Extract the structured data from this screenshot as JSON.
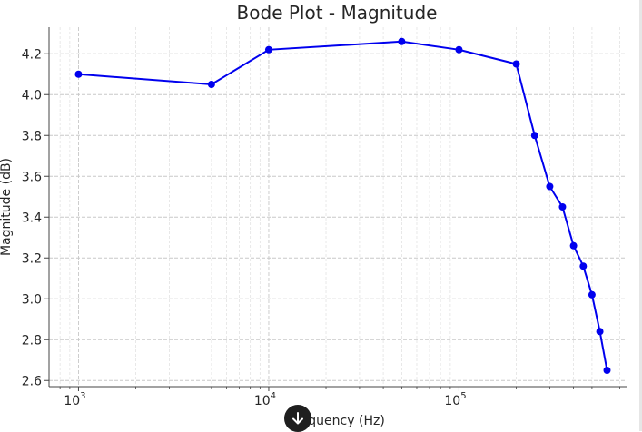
{
  "chart_data": {
    "type": "line",
    "title": "Bode Plot - Magnitude",
    "xlabel": "Frequency (Hz)",
    "ylabel": "Magnitude (dB)",
    "xscale": "log",
    "xlim": [
      700,
      760000
    ],
    "ylim": [
      2.57,
      4.33
    ],
    "grid": true,
    "x_ticks": [
      {
        "value": 1000,
        "base": "10",
        "exp": "3"
      },
      {
        "value": 10000,
        "base": "10",
        "exp": "4"
      },
      {
        "value": 100000,
        "base": "10",
        "exp": "5"
      }
    ],
    "y_ticks": [
      "2.6",
      "2.8",
      "3.0",
      "3.2",
      "3.4",
      "3.6",
      "3.8",
      "4.0",
      "4.2"
    ],
    "series": [
      {
        "color": "#0000ee",
        "x": [
          1000,
          5000,
          10000,
          50000,
          100000,
          200000,
          250000,
          300000,
          350000,
          400000,
          450000,
          500000,
          550000,
          600000
        ],
        "y": [
          4.1,
          4.05,
          4.22,
          4.26,
          4.22,
          4.15,
          3.8,
          3.55,
          3.45,
          3.26,
          3.16,
          3.02,
          2.84,
          2.65
        ]
      }
    ]
  },
  "overlay": {
    "scroll_down_icon": "arrow-down-icon"
  }
}
